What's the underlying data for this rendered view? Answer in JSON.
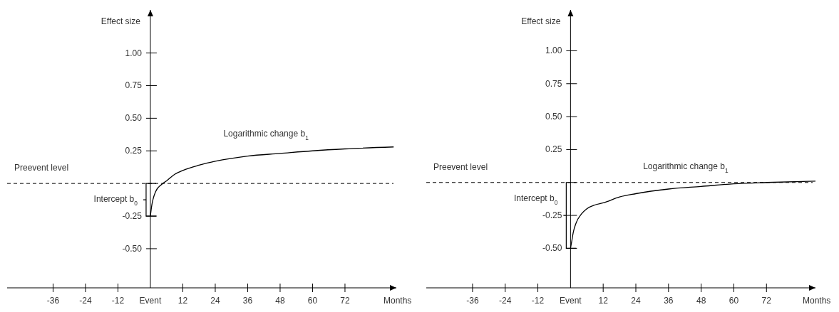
{
  "chart_data": [
    {
      "type": "line",
      "xlabel": "Months",
      "ylabel": "Effect size",
      "xlim": [
        -53,
        91
      ],
      "ylim": [
        -0.8,
        1.33
      ],
      "xticks": [
        -36,
        -24,
        -12,
        {
          "value": 0,
          "label": "Event"
        },
        12,
        24,
        36,
        48,
        60,
        72
      ],
      "yticks": [
        {
          "value": -0.5,
          "label": "-0.50"
        },
        {
          "value": -0.25,
          "label": "-0.25"
        },
        {
          "value": 0.25,
          "label": "0.25"
        },
        {
          "value": 0.5,
          "label": "0.50"
        },
        {
          "value": 0.75,
          "label": "0.75"
        },
        {
          "value": 1,
          "label": "1.00"
        }
      ],
      "series": [
        {
          "color": "#000000",
          "x": [
            0,
            0.5,
            1,
            2,
            4,
            6,
            9,
            12,
            18,
            24,
            36,
            48,
            60,
            72,
            90
          ],
          "values": [
            -0.25,
            -0.17,
            -0.12,
            -0.06,
            -0.01,
            0.02,
            0.07,
            0.1,
            0.14,
            0.17,
            0.21,
            0.23,
            0.25,
            0.265,
            0.28
          ]
        }
      ],
      "ref_lines": [
        {
          "axis": "y",
          "value": 0,
          "label": "Preevent level",
          "line_style": "dashed",
          "color": "#000000"
        }
      ],
      "annotations": [
        "Logarithmic change b$_{1}$",
        "Intercept b$_{0}$"
      ],
      "marker": "none",
      "line_style": "solid",
      "grid": false
    },
    {
      "type": "line",
      "xlabel": "Months",
      "ylabel": "Effect size",
      "xlim": [
        -53,
        90
      ],
      "ylim": [
        -0.8,
        1.31
      ],
      "xticks": [
        -36,
        -24,
        -12,
        {
          "value": 0,
          "label": "Event"
        },
        12,
        24,
        36,
        48,
        60,
        72
      ],
      "yticks": [
        {
          "value": -0.5,
          "label": "-0.50"
        },
        {
          "value": -0.25,
          "label": "-0.25"
        },
        {
          "value": 0.25,
          "label": "0.25"
        },
        {
          "value": 0.5,
          "label": "0.50"
        },
        {
          "value": 0.75,
          "label": "0.75"
        },
        {
          "value": 1,
          "label": "1.00"
        }
      ],
      "series": [
        {
          "color": "#000000",
          "x": [
            0,
            0.5,
            1,
            2,
            4,
            6,
            9,
            12,
            18,
            24,
            36,
            48,
            60,
            72,
            90
          ],
          "values": [
            -0.5,
            -0.44,
            -0.38,
            -0.31,
            -0.24,
            -0.2,
            -0.17,
            -0.155,
            -0.11,
            -0.085,
            -0.05,
            -0.03,
            -0.01,
            0,
            0.01
          ]
        }
      ],
      "ref_lines": [
        {
          "axis": "y",
          "value": 0,
          "label": "Preevent level",
          "line_style": "dashed",
          "color": "#000000"
        }
      ],
      "annotations": [
        "Logarithmic change b$_{1}$",
        "Intercept b$_{0}$"
      ],
      "marker": "none",
      "line_style": "solid",
      "grid": false
    }
  ]
}
